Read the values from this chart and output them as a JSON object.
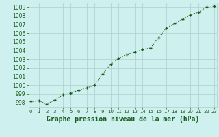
{
  "x": [
    0,
    1,
    2,
    3,
    4,
    5,
    6,
    7,
    8,
    9,
    10,
    11,
    12,
    13,
    14,
    15,
    16,
    17,
    18,
    19,
    20,
    21,
    22,
    23
  ],
  "y": [
    998.1,
    998.2,
    997.8,
    998.3,
    998.9,
    999.1,
    999.4,
    999.7,
    1000.0,
    1001.3,
    1002.4,
    1003.1,
    1003.5,
    1003.8,
    1004.1,
    1004.3,
    1005.5,
    1006.6,
    1007.1,
    1007.6,
    1008.1,
    1008.4,
    1009.0,
    1009.1
  ],
  "line_color": "#1a5c1a",
  "marker_color": "#1a5c1a",
  "bg_color": "#cef0ee",
  "grid_color": "#aacfcc",
  "xlabel": "Graphe pression niveau de la mer (hPa)",
  "ylim_min": 997.5,
  "ylim_max": 1009.5,
  "xlim_min": -0.3,
  "xlim_max": 23.3,
  "yticks": [
    998,
    999,
    1000,
    1001,
    1002,
    1003,
    1004,
    1005,
    1006,
    1007,
    1008,
    1009
  ],
  "xticks": [
    0,
    1,
    2,
    3,
    4,
    5,
    6,
    7,
    8,
    9,
    10,
    11,
    12,
    13,
    14,
    15,
    16,
    17,
    18,
    19,
    20,
    21,
    22,
    23
  ],
  "xlabel_fontsize": 7,
  "ytick_fontsize": 5.5,
  "xtick_fontsize": 5.0,
  "marker_size": 3.5,
  "line_width": 0.8
}
